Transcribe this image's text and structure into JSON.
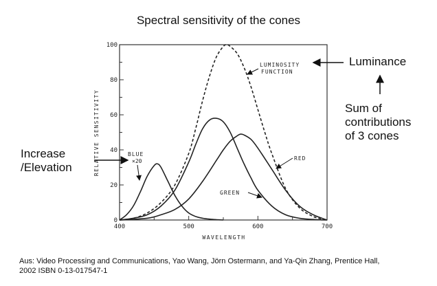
{
  "slide": {
    "title": "Spectral sensitivity of the cones",
    "annotations": {
      "luminance": "Luminance",
      "sum_line1": "Sum of",
      "sum_line2": "contributions",
      "sum_line3": "of 3 cones",
      "increase_line1": "Increase",
      "increase_line2": "/Elevation"
    },
    "citation_line1": "Aus: Video Processing and Communications, Yao Wang, Jörn Ostermann, and Ya-Qin Zhang, Prentice Hall,",
    "citation_line2": "2002  ISBN 0-13-017547-1"
  },
  "chart_data": {
    "type": "line",
    "title": "",
    "xlabel": "WAVELENGTH",
    "ylabel": "RELATIVE SENSITIVITY",
    "xlim": [
      400,
      700
    ],
    "ylim": [
      0,
      100
    ],
    "xticks": [
      "400",
      "500",
      "600",
      "700"
    ],
    "yticks": [
      "0",
      "20",
      "40",
      "60",
      "80",
      "100"
    ],
    "grid": false,
    "series": [
      {
        "name": "BLUE ×20",
        "style": "solid",
        "x": [
          400,
          410,
          420,
          430,
          440,
          450,
          455,
          460,
          470,
          480,
          490,
          500,
          510,
          520,
          530,
          540,
          550
        ],
        "y": [
          0,
          3,
          8,
          16,
          25,
          31,
          32,
          30,
          22,
          14,
          8,
          4,
          2,
          1,
          0.5,
          0.2,
          0
        ]
      },
      {
        "name": "GREEN",
        "style": "solid",
        "x": [
          400,
          420,
          440,
          460,
          480,
          500,
          510,
          520,
          530,
          540,
          550,
          560,
          570,
          580,
          590,
          600,
          620,
          640,
          660,
          680,
          700
        ],
        "y": [
          0,
          1,
          3,
          8,
          17,
          33,
          43,
          52,
          57,
          58,
          56,
          50,
          41,
          32,
          24,
          17,
          8,
          3,
          1,
          0.3,
          0
        ]
      },
      {
        "name": "RED",
        "style": "solid",
        "x": [
          400,
          440,
          460,
          480,
          500,
          520,
          540,
          550,
          560,
          570,
          575,
          580,
          590,
          600,
          620,
          640,
          660,
          680,
          700
        ],
        "y": [
          0,
          1,
          3,
          6,
          12,
          22,
          34,
          40,
          45,
          48,
          49,
          48.5,
          46,
          41,
          29,
          17,
          8,
          3,
          0
        ]
      },
      {
        "name": "LUMINOSITY FUNCTION",
        "style": "dashed",
        "x": [
          400,
          420,
          440,
          460,
          480,
          500,
          510,
          520,
          530,
          540,
          550,
          555,
          560,
          570,
          580,
          590,
          600,
          610,
          620,
          640,
          660,
          680,
          700
        ],
        "y": [
          0,
          1,
          4,
          10,
          20,
          38,
          52,
          68,
          82,
          93,
          99,
          100,
          99,
          95,
          87,
          76,
          63,
          50,
          38,
          18,
          7,
          2,
          0
        ]
      }
    ]
  }
}
